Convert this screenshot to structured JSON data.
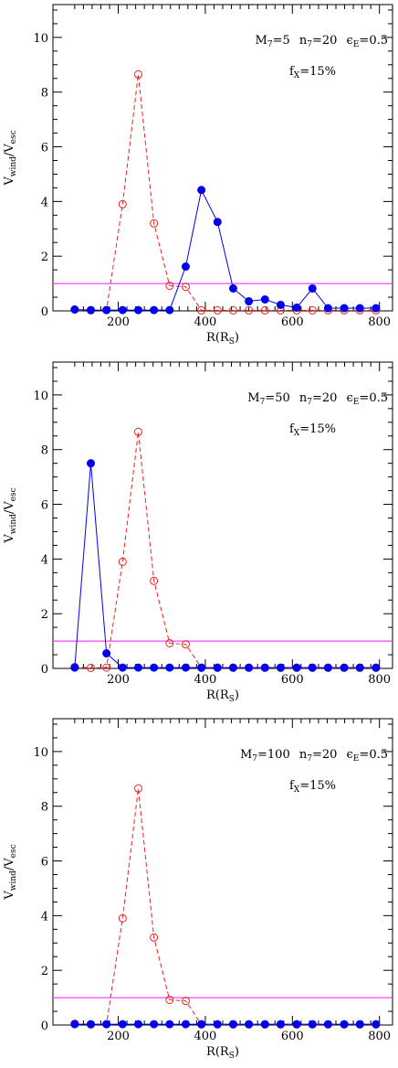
{
  "chart_data": [
    {
      "type": "line",
      "xlim": [
        50,
        830
      ],
      "ylim": [
        0,
        11.2
      ],
      "x_ticks": [
        200,
        400,
        600,
        800
      ],
      "y_ticks": [
        0,
        2,
        4,
        6,
        8,
        10
      ],
      "grid": false,
      "xlabel_main": "R(R",
      "xlabel_sub": "S",
      "xlabel_close": ")",
      "ylabel_main": "V",
      "ylabel_sub1": "wind",
      "ylabel_mid": "/V",
      "ylabel_sub2": "esc",
      "annotation": {
        "m_main": "M",
        "m_sub": "7",
        "m_val": "=5",
        "n_main": "n",
        "n_sub": "7",
        "n_val": "=20",
        "e_main": "ϵ",
        "e_sub": "E",
        "e_val": "=0.5",
        "f_main": "f",
        "f_sub": "X",
        "f_val": "=15%"
      },
      "reference_line": {
        "y": 1.0,
        "color": "#ff44ff"
      },
      "series": [
        {
          "color": "#ee2222",
          "style": "dashed-open-circles",
          "x": [
            100,
            137,
            173,
            210,
            246,
            282,
            318,
            355,
            391,
            428,
            464,
            500,
            537,
            573,
            610,
            646,
            682,
            719,
            755,
            792
          ],
          "y": [
            0.05,
            0.02,
            0.03,
            3.9,
            8.65,
            3.2,
            0.92,
            0.88,
            0.02,
            0.02,
            0.02,
            0.02,
            0.02,
            0.02,
            0.02,
            0.02,
            0.02,
            0.02,
            0.02,
            0.02
          ]
        },
        {
          "color": "#0000ee",
          "style": "solid-filled-circles",
          "x": [
            100,
            137,
            173,
            210,
            246,
            282,
            318,
            355,
            391,
            428,
            464,
            500,
            537,
            573,
            610,
            646,
            682,
            719,
            755,
            792
          ],
          "y": [
            0.05,
            0.03,
            0.03,
            0.03,
            0.03,
            0.03,
            0.03,
            1.62,
            4.42,
            3.25,
            0.82,
            0.35,
            0.42,
            0.22,
            0.12,
            0.82,
            0.1,
            0.1,
            0.1,
            0.1
          ]
        }
      ]
    },
    {
      "type": "line",
      "xlim": [
        50,
        830
      ],
      "ylim": [
        0,
        11.2
      ],
      "x_ticks": [
        200,
        400,
        600,
        800
      ],
      "y_ticks": [
        0,
        2,
        4,
        6,
        8,
        10
      ],
      "grid": false,
      "xlabel_main": "R(R",
      "xlabel_sub": "S",
      "xlabel_close": ")",
      "ylabel_main": "V",
      "ylabel_sub1": "wind",
      "ylabel_mid": "/V",
      "ylabel_sub2": "esc",
      "annotation": {
        "m_main": "M",
        "m_sub": "7",
        "m_val": "=50",
        "n_main": "n",
        "n_sub": "7",
        "n_val": "=20",
        "e_main": "ϵ",
        "e_sub": "E",
        "e_val": "=0.5",
        "f_main": "f",
        "f_sub": "X",
        "f_val": "=15%"
      },
      "reference_line": {
        "y": 1.0,
        "color": "#ff44ff"
      },
      "series": [
        {
          "color": "#ee2222",
          "style": "dashed-open-circles",
          "x": [
            100,
            137,
            173,
            210,
            246,
            282,
            318,
            355,
            391,
            428,
            464,
            500,
            537,
            573,
            610,
            646,
            682,
            719,
            755,
            792
          ],
          "y": [
            0.05,
            0.02,
            0.03,
            3.9,
            8.65,
            3.2,
            0.92,
            0.88,
            0.02,
            0.02,
            0.02,
            0.02,
            0.02,
            0.02,
            0.02,
            0.02,
            0.02,
            0.02,
            0.02,
            0.02
          ]
        },
        {
          "color": "#0000ee",
          "style": "solid-filled-circles",
          "x": [
            100,
            137,
            173,
            210,
            246,
            282,
            318,
            355,
            391,
            428,
            464,
            500,
            537,
            573,
            610,
            646,
            682,
            719,
            755,
            792
          ],
          "y": [
            0.03,
            7.5,
            0.55,
            0.03,
            0.03,
            0.03,
            0.03,
            0.03,
            0.03,
            0.03,
            0.03,
            0.03,
            0.03,
            0.03,
            0.03,
            0.03,
            0.03,
            0.03,
            0.03,
            0.03
          ]
        }
      ]
    },
    {
      "type": "line",
      "xlim": [
        50,
        830
      ],
      "ylim": [
        0,
        11.2
      ],
      "x_ticks": [
        200,
        400,
        600,
        800
      ],
      "y_ticks": [
        0,
        2,
        4,
        6,
        8,
        10
      ],
      "grid": false,
      "xlabel_main": "R(R",
      "xlabel_sub": "S",
      "xlabel_close": ")",
      "ylabel_main": "V",
      "ylabel_sub1": "wind",
      "ylabel_mid": "/V",
      "ylabel_sub2": "esc",
      "annotation": {
        "m_main": "M",
        "m_sub": "7",
        "m_val": "=100",
        "n_main": "n",
        "n_sub": "7",
        "n_val": "=20",
        "e_main": "ϵ",
        "e_sub": "E",
        "e_val": "=0.5",
        "f_main": "f",
        "f_sub": "X",
        "f_val": "=15%"
      },
      "reference_line": {
        "y": 1.0,
        "color": "#ff44ff"
      },
      "series": [
        {
          "color": "#ee2222",
          "style": "dashed-open-circles",
          "x": [
            100,
            137,
            173,
            210,
            246,
            282,
            318,
            355,
            391,
            428,
            464,
            500,
            537,
            573,
            610,
            646,
            682,
            719,
            755,
            792
          ],
          "y": [
            0.05,
            0.02,
            0.03,
            3.9,
            8.65,
            3.2,
            0.92,
            0.88,
            0.02,
            0.02,
            0.02,
            0.02,
            0.02,
            0.02,
            0.02,
            0.02,
            0.02,
            0.02,
            0.02,
            0.02
          ]
        },
        {
          "color": "#0000ee",
          "style": "solid-filled-circles",
          "x": [
            100,
            137,
            173,
            210,
            246,
            282,
            318,
            355,
            391,
            428,
            464,
            500,
            537,
            573,
            610,
            646,
            682,
            719,
            755,
            792
          ],
          "y": [
            0.03,
            0.03,
            0.03,
            0.03,
            0.03,
            0.03,
            0.03,
            0.03,
            0.03,
            0.03,
            0.03,
            0.03,
            0.03,
            0.03,
            0.03,
            0.03,
            0.03,
            0.03,
            0.03,
            0.03
          ]
        }
      ]
    }
  ]
}
